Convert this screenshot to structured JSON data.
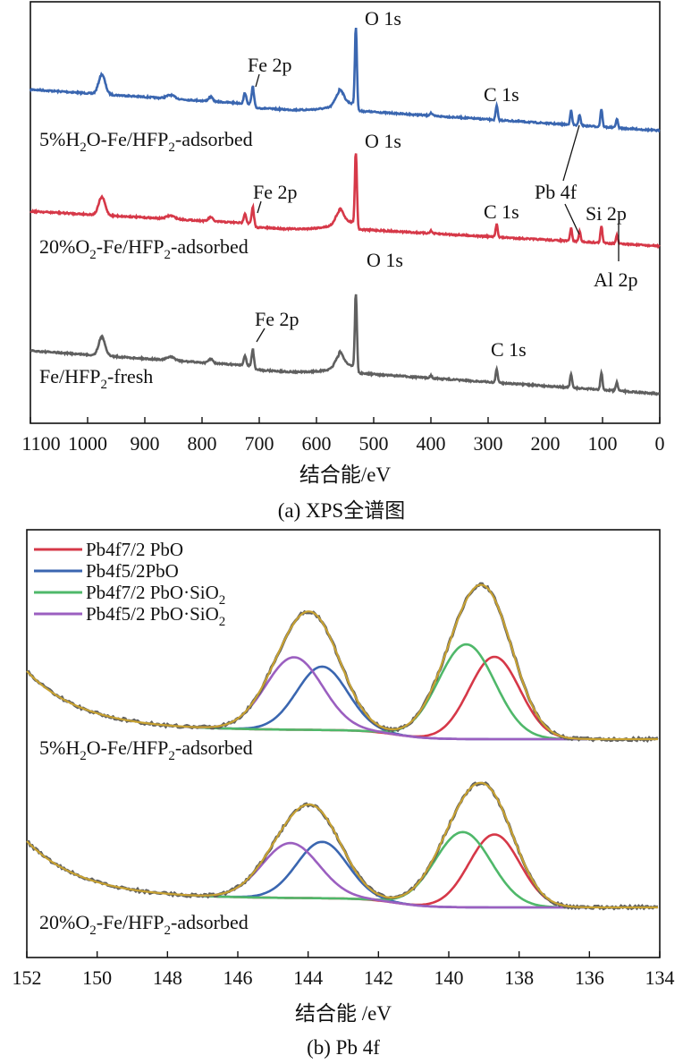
{
  "chart_data": [
    {
      "panel": "a",
      "type": "line",
      "caption": "(a) XPS全谱图",
      "xlabel": "结合能/eV",
      "ylabel": "",
      "xlim": [
        1100,
        0
      ],
      "x_reversed": true,
      "xticks": [
        1100,
        1000,
        900,
        800,
        700,
        600,
        500,
        400,
        300,
        200,
        100,
        0
      ],
      "y_ticks_shown": false,
      "grid": false,
      "series": [
        {
          "name": "5%H2O-Fe/HFP2-adsorbed",
          "label_parts": [
            "5%H",
            "2",
            "O-Fe/HFP",
            "2",
            "-adsorbed"
          ],
          "color": "#3a66b0",
          "peaks_eV": [
            975,
            855,
            785,
            725,
            711,
            560,
            531,
            400,
            285,
            155,
            140,
            102,
            75
          ]
        },
        {
          "name": "20%O2-Fe/HFP2-adsorbed",
          "label_parts": [
            "20%O",
            "2",
            "-Fe/HFP",
            "2",
            "-adsorbed"
          ],
          "color": "#d63848",
          "peaks_eV": [
            975,
            855,
            785,
            725,
            711,
            560,
            531,
            400,
            285,
            155,
            140,
            102,
            75
          ]
        },
        {
          "name": "Fe/HFP2-fresh",
          "label_parts": [
            "Fe/HFP",
            "2",
            "-fresh"
          ],
          "color": "#5f5f5f",
          "peaks_eV": [
            975,
            855,
            785,
            725,
            711,
            560,
            531,
            400,
            285,
            155,
            102,
            75
          ]
        }
      ],
      "annotations": [
        {
          "text": "O 1s",
          "x_eV": 531,
          "series": 0
        },
        {
          "text": "Fe 2p",
          "x_eV": 711,
          "series": 0
        },
        {
          "text": "C 1s",
          "x_eV": 285,
          "series": 0
        },
        {
          "text": "O 1s",
          "x_eV": 531,
          "series": 1
        },
        {
          "text": "Fe 2p",
          "x_eV": 711,
          "series": 1
        },
        {
          "text": "C 1s",
          "x_eV": 285,
          "series": 1
        },
        {
          "text": "Pb 4f",
          "x_eV": 140,
          "series": 1
        },
        {
          "text": "Si 2p",
          "x_eV": 102,
          "series": 1
        },
        {
          "text": "Al 2p",
          "x_eV": 75,
          "series": 1
        },
        {
          "text": "O 1s",
          "x_eV": 531,
          "series": 2
        },
        {
          "text": "Fe 2p",
          "x_eV": 711,
          "series": 2
        },
        {
          "text": "C 1s",
          "x_eV": 285,
          "series": 2
        }
      ]
    },
    {
      "panel": "b",
      "type": "line",
      "caption": "(b) Pb 4f",
      "xlabel": "结合能 /eV",
      "ylabel": "",
      "xlim": [
        152,
        134
      ],
      "x_reversed": true,
      "xticks": [
        152,
        150,
        148,
        146,
        144,
        142,
        140,
        138,
        136,
        134
      ],
      "y_ticks_shown": false,
      "grid": false,
      "legend_position": "top-left",
      "legend": [
        {
          "text": "Pb4f7/2 PbO",
          "color": "#d63848"
        },
        {
          "text": "Pb4f5/2PbO",
          "color": "#3a66b0"
        },
        {
          "text": "Pb4f7/2 PbO·SiO",
          "sub": "2",
          "color": "#4fb86a"
        },
        {
          "text": "Pb4f5/2 PbO·SiO",
          "sub": "2",
          "color": "#9b5fc0"
        }
      ],
      "envelope_color": "#c8a232",
      "raw_color": "#5f5f5f",
      "spectra": [
        {
          "name": "5%H2O-Fe/HFP2-adsorbed",
          "label_parts": [
            "5%H",
            "2",
            "O-Fe/HFP",
            "2",
            "-adsorbed"
          ],
          "components": [
            {
              "name": "Pb4f7/2 PbO",
              "center_eV": 138.7,
              "height": 1.0,
              "fwhm": 1.7
            },
            {
              "name": "Pb4f5/2PbO",
              "center_eV": 143.6,
              "height": 0.77,
              "fwhm": 1.7
            },
            {
              "name": "Pb4f7/2 PbO·SiO2",
              "center_eV": 139.5,
              "height": 1.15,
              "fwhm": 1.9
            },
            {
              "name": "Pb4f5/2 PbO·SiO2",
              "center_eV": 144.4,
              "height": 0.88,
              "fwhm": 1.9
            }
          ]
        },
        {
          "name": "20%O2-Fe/HFP2-adsorbed",
          "label_parts": [
            "20%O",
            "2",
            "-Fe/HFP",
            "2",
            "-adsorbed"
          ],
          "components": [
            {
              "name": "Pb4f7/2 PbO",
              "center_eV": 138.7,
              "height": 0.97,
              "fwhm": 1.7
            },
            {
              "name": "Pb4f5/2PbO",
              "center_eV": 143.6,
              "height": 0.75,
              "fwhm": 1.7
            },
            {
              "name": "Pb4f7/2 PbO·SiO2",
              "center_eV": 139.6,
              "height": 1.0,
              "fwhm": 1.9
            },
            {
              "name": "Pb4f5/2 PbO·SiO2",
              "center_eV": 144.5,
              "height": 0.73,
              "fwhm": 1.9
            }
          ]
        }
      ]
    }
  ]
}
